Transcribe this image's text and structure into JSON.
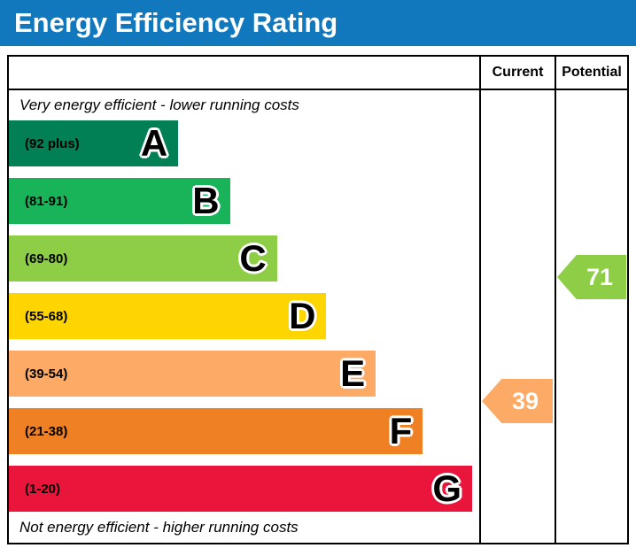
{
  "title": "Energy Efficiency Rating",
  "header": {
    "current": "Current",
    "potential": "Potential"
  },
  "captions": {
    "top": "Very energy efficient - lower running costs",
    "bottom": "Not energy efficient - higher running costs"
  },
  "colors": {
    "title_bar": "#1278be",
    "border": "#000000"
  },
  "bands": [
    {
      "letter": "A",
      "range_label": "(92 plus)",
      "min": 92,
      "max": 100,
      "color": "#008054",
      "length": "36%"
    },
    {
      "letter": "B",
      "range_label": "(81-91)",
      "min": 81,
      "max": 91,
      "color": "#19b459",
      "length": "47%"
    },
    {
      "letter": "C",
      "range_label": "(69-80)",
      "min": 69,
      "max": 80,
      "color": "#8dce46",
      "length": "57%"
    },
    {
      "letter": "D",
      "range_label": "(55-68)",
      "min": 55,
      "max": 68,
      "color": "#ffd500",
      "length": "67.5%"
    },
    {
      "letter": "E",
      "range_label": "(39-54)",
      "min": 39,
      "max": 54,
      "color": "#fcaa65",
      "length": "78%"
    },
    {
      "letter": "F",
      "range_label": "(21-38)",
      "min": 21,
      "max": 38,
      "color": "#ef8023",
      "length": "88%"
    },
    {
      "letter": "G",
      "range_label": "(1-20)",
      "min": 1,
      "max": 20,
      "color": "#e9153b",
      "length": "98.5%"
    }
  ],
  "ratings": {
    "current": {
      "value": 39,
      "band": "E",
      "color": "#fcaa65"
    },
    "potential": {
      "value": 71,
      "band": "C",
      "color": "#8dce46"
    }
  },
  "chart_data": {
    "type": "bar",
    "title": "Energy Efficiency Rating",
    "categories": [
      "A (92 plus)",
      "B (81-91)",
      "C (69-80)",
      "D (55-68)",
      "E (39-54)",
      "F (21-38)",
      "G (1-20)"
    ],
    "values": [
      36,
      47,
      57,
      67.5,
      78,
      88,
      98.5
    ],
    "value_unit": "bar length as percent of band column width",
    "band_colors": [
      "#008054",
      "#19b459",
      "#8dce46",
      "#ffd500",
      "#fcaa65",
      "#ef8023",
      "#e9153b"
    ],
    "columns": [
      "Current",
      "Potential"
    ],
    "current_rating": 39,
    "current_band": "E",
    "potential_rating": 71,
    "potential_band": "C",
    "annotations": [
      "Very energy efficient - lower running costs",
      "Not energy efficient - higher running costs"
    ],
    "legend_position": "none",
    "grid": false
  }
}
